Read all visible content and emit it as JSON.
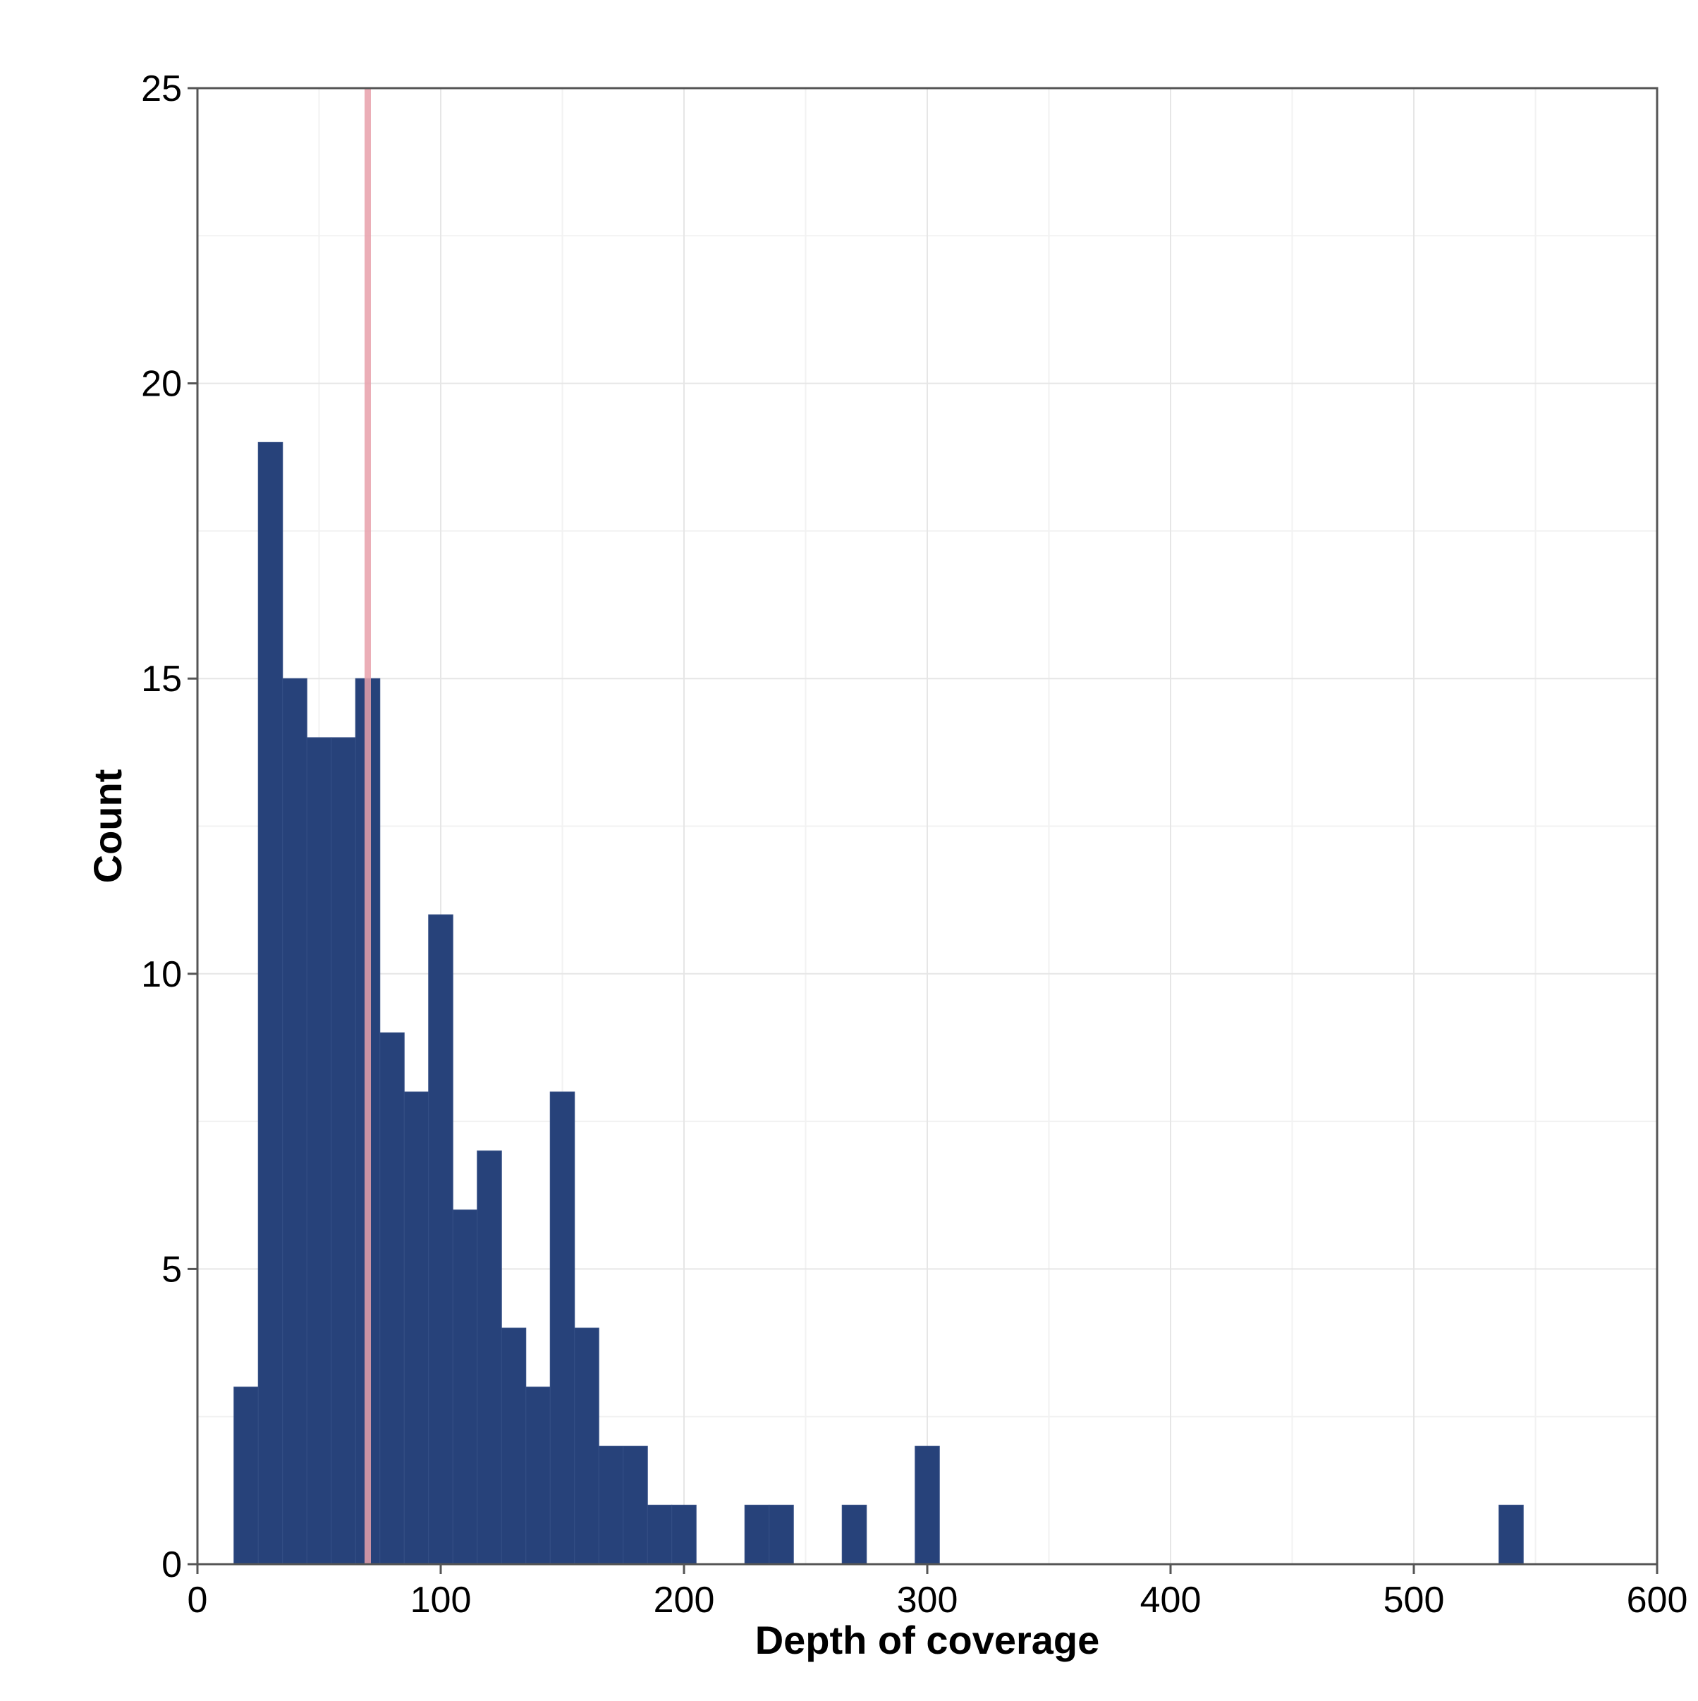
{
  "chart_data": {
    "type": "bar",
    "subtype": "histogram",
    "title": "",
    "xlabel": "Depth of coverage",
    "ylabel": "Count",
    "xlim": [
      0,
      600
    ],
    "ylim": [
      0,
      25
    ],
    "x_ticks": [
      0,
      100,
      200,
      300,
      400,
      500,
      600
    ],
    "x_tick_labels": [
      "0",
      "100",
      "200",
      "300",
      "400",
      "500",
      "600"
    ],
    "y_ticks": [
      0,
      5,
      10,
      15,
      20,
      25
    ],
    "y_tick_labels": [
      "0",
      "5",
      "10",
      "15",
      "20",
      "25"
    ],
    "grid": true,
    "legend": "none",
    "bin_width": 10,
    "bins": [
      {
        "x0": 15,
        "x1": 25,
        "count": 3
      },
      {
        "x0": 25,
        "x1": 35,
        "count": 19
      },
      {
        "x0": 35,
        "x1": 45,
        "count": 15
      },
      {
        "x0": 45,
        "x1": 55,
        "count": 14
      },
      {
        "x0": 55,
        "x1": 65,
        "count": 14
      },
      {
        "x0": 65,
        "x1": 75,
        "count": 15
      },
      {
        "x0": 75,
        "x1": 85,
        "count": 9
      },
      {
        "x0": 85,
        "x1": 95,
        "count": 8
      },
      {
        "x0": 95,
        "x1": 105,
        "count": 11
      },
      {
        "x0": 105,
        "x1": 115,
        "count": 6
      },
      {
        "x0": 115,
        "x1": 125,
        "count": 7
      },
      {
        "x0": 125,
        "x1": 135,
        "count": 4
      },
      {
        "x0": 135,
        "x1": 145,
        "count": 3
      },
      {
        "x0": 145,
        "x1": 155,
        "count": 8
      },
      {
        "x0": 155,
        "x1": 165,
        "count": 4
      },
      {
        "x0": 165,
        "x1": 175,
        "count": 2
      },
      {
        "x0": 175,
        "x1": 185,
        "count": 2
      },
      {
        "x0": 185,
        "x1": 195,
        "count": 1
      },
      {
        "x0": 195,
        "x1": 205,
        "count": 1
      },
      {
        "x0": 225,
        "x1": 235,
        "count": 1
      },
      {
        "x0": 235,
        "x1": 245,
        "count": 1
      },
      {
        "x0": 265,
        "x1": 275,
        "count": 1
      },
      {
        "x0": 295,
        "x1": 305,
        "count": 2
      },
      {
        "x0": 535,
        "x1": 545,
        "count": 1
      }
    ],
    "reference_line": {
      "x": 70,
      "color": "#e8a0aa"
    },
    "bar_color": "#27427a",
    "bar_edge_color": "#354f85",
    "panel_border_color": "#555555",
    "grid_color": "#e6e6e6",
    "minor_grid_color": "#f2f2f2"
  }
}
